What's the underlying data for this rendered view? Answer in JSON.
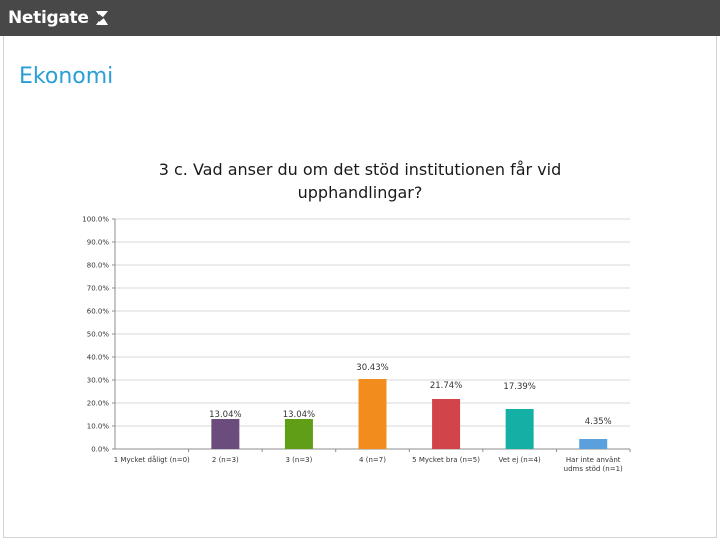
{
  "header": {
    "brand": "Netigate",
    "logo_icon": "netigate-logo-icon",
    "background": "#484848"
  },
  "page": {
    "title": "Ekonomi",
    "title_color": "#2a9fd6"
  },
  "chart_data": {
    "type": "bar",
    "title": "3 c. Vad anser du om det stöd institutionen får vid upphandlingar?",
    "xlabel": "",
    "ylabel": "",
    "ylim": [
      0,
      100
    ],
    "y_ticks": [
      "0.0%",
      "10.0%",
      "20.0%",
      "30.0%",
      "40.0%",
      "50.0%",
      "60.0%",
      "70.0%",
      "80.0%",
      "90.0%",
      "100.0%"
    ],
    "grid": true,
    "categories": [
      [
        "1 Mycket dåligt (n=0)"
      ],
      [
        "2 (n=3)"
      ],
      [
        "3 (n=3)"
      ],
      [
        "4 (n=7)"
      ],
      [
        "5 Mycket bra (n=5)"
      ],
      [
        "Vet ej (n=4)"
      ],
      [
        "Har inte använt",
        "udms stöd (n=1)"
      ]
    ],
    "values": [
      0,
      13.04,
      13.04,
      30.43,
      21.74,
      17.39,
      4.35
    ],
    "data_labels": [
      "",
      "13.04%",
      "13.04%",
      "30.43%",
      "21.74%",
      "17.39%",
      "4.35%"
    ],
    "colors": [
      "#7f7f7f",
      "#6b4c7c",
      "#5f9e16",
      "#f28c1d",
      "#d1444a",
      "#14b0a6",
      "#5aa0dc"
    ]
  }
}
